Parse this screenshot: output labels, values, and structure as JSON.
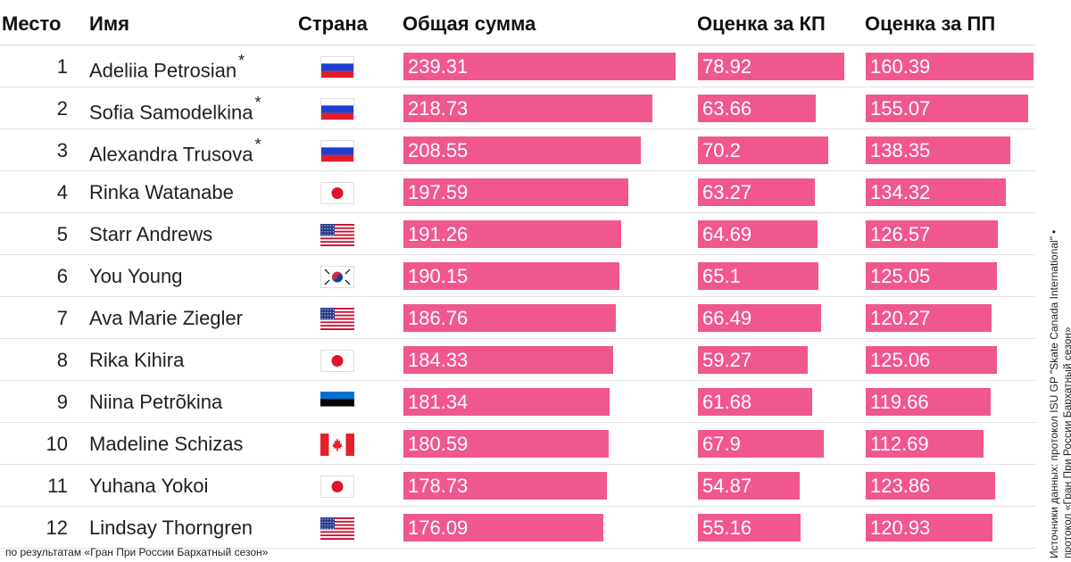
{
  "chart_data": {
    "type": "table",
    "columns": [
      "Место",
      "Имя",
      "Страна",
      "Общая сумма",
      "Оценка за КП",
      "Оценка за ПП"
    ],
    "rows": [
      {
        "rank": "1",
        "name": "Adeliia Petrosian",
        "asterisk": "*",
        "country": "russia-flag",
        "total": 239.31,
        "sp": 78.92,
        "fs": 160.39
      },
      {
        "rank": "2",
        "name": "Sofia Samodelkina",
        "asterisk": "*",
        "country": "russia-flag",
        "total": 218.73,
        "sp": 63.66,
        "fs": 155.07
      },
      {
        "rank": "3",
        "name": "Alexandra Trusova",
        "asterisk": "*",
        "country": "russia-flag",
        "total": 208.55,
        "sp": 70.2,
        "fs": 138.35
      },
      {
        "rank": "4",
        "name": "Rinka Watanabe",
        "asterisk": "",
        "country": "japan-flag",
        "total": 197.59,
        "sp": 63.27,
        "fs": 134.32
      },
      {
        "rank": "5",
        "name": "Starr Andrews",
        "asterisk": "",
        "country": "usa-flag",
        "total": 191.26,
        "sp": 64.69,
        "fs": 126.57
      },
      {
        "rank": "6",
        "name": "You Young",
        "asterisk": "",
        "country": "south-korea-flag",
        "total": 190.15,
        "sp": 65.1,
        "fs": 125.05
      },
      {
        "rank": "7",
        "name": "Ava Marie Ziegler",
        "asterisk": "",
        "country": "usa-flag",
        "total": 186.76,
        "sp": 66.49,
        "fs": 120.27
      },
      {
        "rank": "8",
        "name": "Rika Kihira",
        "asterisk": "",
        "country": "japan-flag",
        "total": 184.33,
        "sp": 59.27,
        "fs": 125.06
      },
      {
        "rank": "9",
        "name": "Niina Petrõkina",
        "asterisk": "",
        "country": "estonia-flag",
        "total": 181.34,
        "sp": 61.68,
        "fs": 119.66
      },
      {
        "rank": "10",
        "name": "Madeline Schizas",
        "asterisk": "",
        "country": "canada-flag",
        "total": 180.59,
        "sp": 67.9,
        "fs": 112.69
      },
      {
        "rank": "11",
        "name": "Yuhana Yokoi",
        "asterisk": "",
        "country": "japan-flag",
        "total": 178.73,
        "sp": 54.87,
        "fs": 123.86
      },
      {
        "rank": "12",
        "name": "Lindsay Thorngren",
        "asterisk": "",
        "country": "usa-flag",
        "total": 176.09,
        "sp": 55.16,
        "fs": 120.93
      }
    ],
    "bar_color": "#f0578f"
  },
  "footer": "по результатам «Гран При России Бархатный сезон»",
  "source": {
    "line1": "Источники данных: протокол ISU GP \"Skate Canada International\"",
    "bullet": "•",
    "line2": "протокол «Гран При России Бархатный сезон»"
  }
}
